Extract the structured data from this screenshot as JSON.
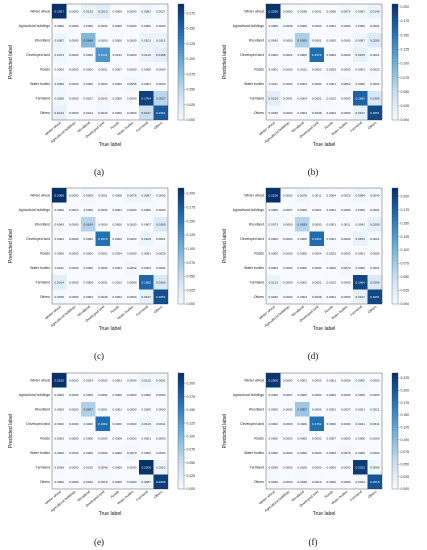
{
  "chart_data": [
    {
      "type": "heatmap",
      "caption": "(a)",
      "xlabel": "True label",
      "ylabel": "Predicted label",
      "categories": [
        "Winter wheat",
        "Agricultural buildings",
        "Woodland",
        "Developed land",
        "Roads",
        "Water bodies",
        "Farmland",
        "Others"
      ],
      "values": [
        [
          0.1927,
          0.0,
          0.0133,
          0.021,
          0.0,
          0.0,
          0.0082,
          0.0027
        ],
        [
          0.0,
          0.0,
          0.0,
          0.0004,
          0.0,
          0.0,
          0.0,
          0.0
        ],
        [
          0.0087,
          0.0,
          0.0846,
          0.0,
          0.0,
          0.0,
          0.0101,
          0.0119
        ],
        [
          0.0073,
          0.0,
          0.0,
          0.1141,
          0.0011,
          0.0,
          0.011,
          0.0188
        ],
        [
          0.0,
          0.0,
          0.0,
          0.0001,
          0.0007,
          0.0,
          0.0,
          0.0
        ],
        [
          0.0056,
          0.0,
          0.0,
          0.0003,
          0.0,
          0.0055,
          0.0007,
          0.0
        ],
        [
          0.0058,
          0.0,
          0.0017,
          0.0043,
          0.0,
          0.0,
          0.1784,
          0.0537
        ],
        [
          0.0144,
          0.0,
          0.0014,
          0.0043,
          0.0,
          0.0,
          0.0417,
          0.1591
        ]
      ],
      "colorbar_ticks": [
        "0.000",
        "0.025",
        "0.050",
        "0.075",
        "0.100",
        "0.125",
        "0.150",
        "0.175"
      ],
      "vmax": 0.19
    },
    {
      "type": "heatmap",
      "caption": "(b)",
      "xlabel": "True label",
      "ylabel": "Predicted label",
      "categories": [
        "Winter wheat",
        "Agricultural buildings",
        "Woodland",
        "Developed land",
        "Roads",
        "Water bodies",
        "Farmland",
        "Others"
      ],
      "values": [
        [
          0.203,
          0.0,
          0.0038,
          0.0001,
          0.0008,
          0.0076,
          0.0067,
          0.0148
        ],
        [
          0.0,
          0.0008,
          0.0,
          0.0004,
          0.0001,
          0.0,
          0.0,
          0.0001
        ],
        [
          0.0043,
          0.0,
          0.0659,
          0.0001,
          0.0,
          0.0,
          0.0097,
          0.0283
        ],
        [
          0.0,
          0.0002,
          0.0,
          0.1576,
          0.0,
          0.0,
          0.0155,
          0.0021
        ],
        [
          0.0001,
          0.0,
          0.0012,
          0.0002,
          0.0029,
          0.0,
          0.0001,
          0.0025
        ],
        [
          0.0011,
          0.0,
          0.0004,
          0.0,
          0.0001,
          0.0062,
          0.0,
          0.0004
        ],
        [
          0.0214,
          0.0001,
          0.0004,
          0.0001,
          0.0012,
          0.0,
          0.1665,
          0.0306
        ],
        [
          0.0035,
          0.0,
          0.0003,
          0.0038,
          0.0002,
          0.0,
          0.0167,
          0.1851
        ]
      ],
      "colorbar_ticks": [
        "0.000",
        "0.025",
        "0.050",
        "0.075",
        "0.100",
        "0.125",
        "0.150",
        "0.175",
        "0.200"
      ],
      "vmax": 0.205
    },
    {
      "type": "heatmap",
      "caption": "(c)",
      "xlabel": "True label",
      "ylabel": "Predicted label",
      "categories": [
        "Winter wheat",
        "Agricultural buildings",
        "Woodland",
        "Developed land",
        "Roads",
        "Water bodies",
        "Farmland",
        "Others"
      ],
      "values": [
        [
          0.2098,
          0.0,
          0.0069,
          0.0001,
          0.0008,
          0.0078,
          0.0087,
          0.0
        ],
        [
          0.0,
          0.001,
          0.0,
          0.0004,
          0.0001,
          0.0,
          0.0,
          0.0
        ],
        [
          0.0043,
          0.0,
          0.0614,
          0.0,
          0.0,
          0.0,
          0.0007,
          0.0289
        ],
        [
          0.0002,
          0.0,
          0.0002,
          0.1579,
          0.0002,
          0.0,
          0.0105,
          0.0021
        ],
        [
          0.0005,
          0.0,
          0.0,
          0.0002,
          0.0024,
          0.0,
          0.0001,
          0.0025
        ],
        [
          0.0011,
          0.0,
          0.0,
          0.0,
          0.0001,
          0.0062,
          0.0,
          0.0004
        ],
        [
          0.0214,
          0.0,
          0.0004,
          0.0001,
          0.0012,
          0.0,
          0.1665,
          0.0306
        ],
        [
          0.0035,
          0.0,
          0.0003,
          0.0038,
          0.0002,
          0.0,
          0.0167,
          0.1851
        ]
      ],
      "colorbar_ticks": [
        "0.000",
        "0.025",
        "0.050",
        "0.075",
        "0.100",
        "0.125",
        "0.150",
        "0.175",
        "0.200"
      ],
      "vmax": 0.21
    },
    {
      "type": "heatmap",
      "caption": "(d)",
      "xlabel": "True label",
      "ylabel": "Predicted label",
      "categories": [
        "Winter wheat",
        "Agricultural buildings",
        "Woodland",
        "Developed land",
        "Roads",
        "Water bodies",
        "Farmland",
        "Others"
      ],
      "values": [
        [
          0.2156,
          0.0,
          0.0078,
          0.0011,
          0.0004,
          0.0016,
          0.0084,
          0.0049
        ],
        [
          0.0,
          0.0007,
          0.0,
          0.0001,
          0.0001,
          0.0,
          0.0,
          0.0001
        ],
        [
          0.0073,
          0.0,
          0.0639,
          0.0,
          0.0001,
          0.0011,
          0.0042,
          0.0209
        ],
        [
          0.0,
          0.0,
          0.0,
          0.1661,
          0.0001,
          0.0,
          0.0153,
          0.0021
        ],
        [
          0.0005,
          0.0,
          0.0,
          0.0004,
          0.0023,
          0.0,
          0.0001,
          0.0005
        ],
        [
          0.0003,
          0.0,
          0.0,
          0.0,
          0.0,
          0.007,
          0.0,
          0.0001
        ],
        [
          0.0123,
          0.0,
          0.0002,
          0.0001,
          0.0012,
          0.0,
          0.1964,
          0.0296
        ],
        [
          0.0025,
          0.0,
          0.0003,
          0.0038,
          0.0001,
          0.0,
          0.0167,
          0.1951
        ]
      ],
      "colorbar_ticks": [
        "0.000",
        "0.025",
        "0.050",
        "0.075",
        "0.100",
        "0.125",
        "0.150",
        "0.175",
        "0.200"
      ],
      "vmax": 0.215
    },
    {
      "type": "heatmap",
      "caption": "(e)",
      "xlabel": "True label",
      "ylabel": "Predicted label",
      "categories": [
        "Winter wheat",
        "Agricultural buildings",
        "Woodland",
        "Developed land",
        "Roads",
        "Water bodies",
        "Farmland",
        "Others"
      ],
      "values": [
        [
          0.2192,
          0.0,
          0.0024,
          0.0003,
          0.0001,
          0.0,
          0.011,
          0.0051
        ],
        [
          0.0,
          0.0,
          0.0,
          0.0002,
          0.0,
          0.0,
          0.0,
          0.0
        ],
        [
          0.0,
          0.0,
          0.0687,
          0.0001,
          0.0001,
          0.0,
          0.0,
          0.0
        ],
        [
          0.0002,
          0.0,
          0.0,
          0.1682,
          0.0,
          0.0,
          0.0116,
          0.0041
        ],
        [
          0.0003,
          0.0,
          0.0,
          0.0,
          0.0006,
          0.0,
          0.0001,
          0.0
        ],
        [
          0.0006,
          0.0,
          0.0,
          0.0,
          0.0,
          0.007,
          0.0,
          0.0
        ],
        [
          0.0038,
          0.0,
          0.0015,
          0.0048,
          0.0,
          0.0,
          0.2209,
          0.011
        ],
        [
          0.0,
          0.0,
          0.0042,
          0.0019,
          0.0,
          0.0,
          0.0087,
          0.2099
        ]
      ],
      "colorbar_ticks": [
        "0.000",
        "0.025",
        "0.050",
        "0.075",
        "0.100",
        "0.125",
        "0.150",
        "0.175",
        "0.200"
      ],
      "vmax": 0.22
    },
    {
      "type": "heatmap",
      "caption": "(f)",
      "xlabel": "True label",
      "ylabel": "Predicted label",
      "categories": [
        "Winter wheat",
        "Agricultural buildings",
        "Woodland",
        "Developed land",
        "Roads",
        "Water bodies",
        "Farmland",
        "Others"
      ],
      "values": [
        [
          0.23,
          0.0,
          0.0001,
          0.0003,
          0.0001,
          0.0008,
          0.0062,
          0.0003
        ],
        [
          0.0,
          0.0007,
          0.0,
          0.0,
          0.0,
          0.0,
          0.0,
          0.0
        ],
        [
          0.0,
          0.0,
          0.0857,
          0.0006,
          0.0002,
          0.0007,
          0.0021,
          0.0021
        ],
        [
          0.0002,
          0.0,
          0.0,
          0.1762,
          0.0,
          0.0,
          0.0041,
          0.0041
        ],
        [
          0.0,
          0.0,
          0.0,
          0.0002,
          0.0007,
          0.0,
          0.0,
          0.0
        ],
        [
          0.0,
          0.0,
          0.0,
          0.0,
          0.0,
          0.0076,
          0.0,
          0.0
        ],
        [
          0.0038,
          0.0,
          0.0026,
          0.0,
          0.0,
          0.0,
          0.2252,
          0.0088
        ],
        [
          0.004,
          0.0,
          0.0038,
          0.0019,
          0.0,
          0.0,
          0.0044,
          0.2018
        ]
      ],
      "colorbar_ticks": [
        "0.000",
        "0.025",
        "0.050",
        "0.075",
        "0.100",
        "0.125",
        "0.150",
        "0.175",
        "0.200",
        "0.225"
      ],
      "vmax": 0.235
    }
  ]
}
